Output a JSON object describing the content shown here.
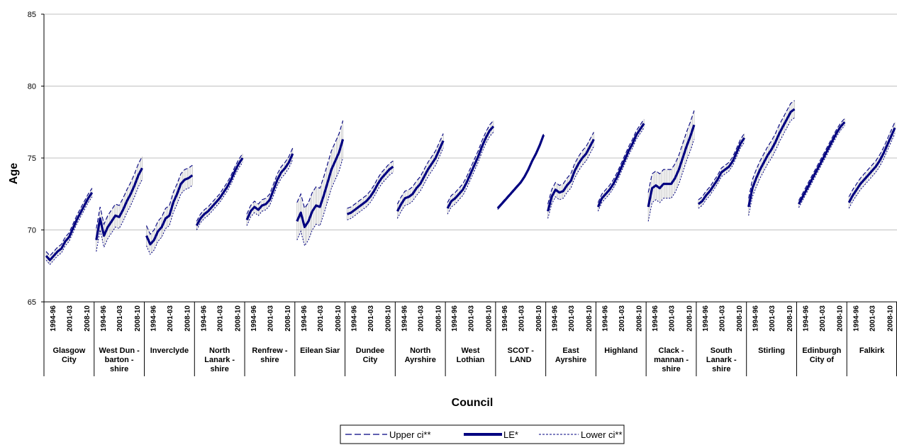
{
  "chart_data": {
    "type": "line",
    "title": "",
    "xlabel": "Council",
    "ylabel": "Age",
    "ylim": [
      65,
      85
    ],
    "yticks": [
      65,
      70,
      75,
      80,
      85
    ],
    "grid": true,
    "legend_position": "bottom",
    "colors": {
      "line": "#000080",
      "band_hatch": "#b0b0b0",
      "grid": "#c0c0c0",
      "axis": "#000000"
    },
    "period_labels": [
      "1994-96",
      "2001-03",
      "2008-10"
    ],
    "series_names": {
      "upper": "Upper ci**",
      "le": "LE*",
      "lower": "Lower ci**"
    },
    "councils": [
      {
        "name": "Glasgow City",
        "label_lines": [
          "Glasgow",
          "City"
        ],
        "le": [
          68.2,
          67.9,
          68.2,
          68.5,
          68.7,
          69.2,
          69.5,
          70.1,
          70.7,
          71.2,
          71.7,
          72.2,
          72.6
        ],
        "ci": [
          0.3,
          0.3,
          0.3,
          0.3,
          0.3,
          0.3,
          0.3,
          0.3,
          0.3,
          0.3,
          0.3,
          0.3,
          0.3
        ]
      },
      {
        "name": "West Dunbartonshire",
        "label_lines": [
          "West Dun -",
          "barton -",
          "shire"
        ],
        "le": [
          69.3,
          70.8,
          69.6,
          70.2,
          70.6,
          71.0,
          70.9,
          71.4,
          72.0,
          72.5,
          73.1,
          73.8,
          74.3
        ],
        "ci": [
          0.8,
          0.8,
          0.8,
          0.8,
          0.8,
          0.8,
          0.8,
          0.8,
          0.8,
          0.8,
          0.8,
          0.8,
          0.8
        ]
      },
      {
        "name": "Inverclyde",
        "label_lines": [
          "Inverclyde"
        ],
        "le": [
          69.6,
          69.0,
          69.3,
          69.9,
          70.2,
          70.8,
          71.0,
          71.9,
          72.5,
          73.2,
          73.5,
          73.6,
          73.8
        ],
        "ci": [
          0.7,
          0.7,
          0.7,
          0.7,
          0.7,
          0.7,
          0.7,
          0.7,
          0.7,
          0.7,
          0.7,
          0.7,
          0.7
        ]
      },
      {
        "name": "North Lanarkshire",
        "label_lines": [
          "North",
          "Lanark -",
          "shire"
        ],
        "le": [
          70.3,
          70.8,
          71.1,
          71.3,
          71.6,
          71.9,
          72.2,
          72.6,
          73.0,
          73.5,
          74.1,
          74.6,
          75.0
        ],
        "ci": [
          0.3,
          0.3,
          0.3,
          0.3,
          0.3,
          0.3,
          0.3,
          0.3,
          0.3,
          0.3,
          0.3,
          0.3,
          0.3
        ]
      },
      {
        "name": "Renfrewshire",
        "label_lines": [
          "Renfrew -",
          "shire"
        ],
        "le": [
          70.7,
          71.3,
          71.6,
          71.4,
          71.7,
          71.8,
          72.1,
          72.8,
          73.5,
          74.0,
          74.3,
          74.7,
          75.3
        ],
        "ci": [
          0.4,
          0.4,
          0.4,
          0.4,
          0.4,
          0.4,
          0.4,
          0.4,
          0.4,
          0.4,
          0.4,
          0.4,
          0.4
        ]
      },
      {
        "name": "Eilean Siar",
        "label_lines": [
          "Eilean Siar"
        ],
        "le": [
          70.6,
          71.2,
          70.2,
          70.6,
          71.3,
          71.7,
          71.6,
          72.4,
          73.3,
          74.2,
          74.8,
          75.4,
          76.3
        ],
        "ci": [
          1.3,
          1.3,
          1.3,
          1.3,
          1.3,
          1.3,
          1.3,
          1.3,
          1.3,
          1.3,
          1.3,
          1.3,
          1.3
        ]
      },
      {
        "name": "Dundee City",
        "label_lines": [
          "Dundee",
          "City"
        ],
        "le": [
          71.1,
          71.2,
          71.4,
          71.6,
          71.8,
          72.0,
          72.3,
          72.7,
          73.2,
          73.6,
          73.9,
          74.2,
          74.4
        ],
        "ci": [
          0.4,
          0.4,
          0.4,
          0.4,
          0.4,
          0.4,
          0.4,
          0.4,
          0.4,
          0.4,
          0.4,
          0.4,
          0.4
        ]
      },
      {
        "name": "North Ayrshire",
        "label_lines": [
          "North",
          "Ayrshire"
        ],
        "le": [
          71.3,
          71.8,
          72.2,
          72.3,
          72.5,
          72.9,
          73.2,
          73.7,
          74.2,
          74.6,
          75.0,
          75.6,
          76.2
        ],
        "ci": [
          0.5,
          0.5,
          0.5,
          0.5,
          0.5,
          0.5,
          0.5,
          0.5,
          0.5,
          0.5,
          0.5,
          0.5,
          0.5
        ]
      },
      {
        "name": "West Lothian",
        "label_lines": [
          "West",
          "Lothian"
        ],
        "le": [
          71.5,
          72.0,
          72.2,
          72.5,
          72.8,
          73.3,
          73.9,
          74.5,
          75.1,
          75.8,
          76.4,
          76.9,
          77.2
        ],
        "ci": [
          0.4,
          0.4,
          0.4,
          0.4,
          0.4,
          0.4,
          0.4,
          0.4,
          0.4,
          0.4,
          0.4,
          0.4,
          0.4
        ]
      },
      {
        "name": "Scotland",
        "label_lines": [
          "SCOT -",
          "LAND"
        ],
        "le": [
          71.5,
          71.8,
          72.1,
          72.4,
          72.7,
          73.0,
          73.3,
          73.7,
          74.2,
          74.8,
          75.3,
          75.9,
          76.6
        ],
        "ci": [
          0.08,
          0.08,
          0.08,
          0.08,
          0.08,
          0.08,
          0.08,
          0.08,
          0.08,
          0.08,
          0.08,
          0.08,
          0.08
        ]
      },
      {
        "name": "East Ayrshire",
        "label_lines": [
          "East",
          "Ayrshire"
        ],
        "le": [
          71.3,
          72.3,
          72.8,
          72.6,
          72.7,
          73.1,
          73.4,
          74.1,
          74.6,
          75.0,
          75.3,
          75.8,
          76.3
        ],
        "ci": [
          0.5,
          0.5,
          0.5,
          0.5,
          0.5,
          0.5,
          0.5,
          0.5,
          0.5,
          0.5,
          0.5,
          0.5,
          0.5
        ]
      },
      {
        "name": "Highland",
        "label_lines": [
          "Highland"
        ],
        "le": [
          71.6,
          72.2,
          72.5,
          72.8,
          73.2,
          73.7,
          74.3,
          74.9,
          75.5,
          76.0,
          76.6,
          77.0,
          77.4
        ],
        "ci": [
          0.3,
          0.3,
          0.3,
          0.3,
          0.3,
          0.3,
          0.3,
          0.3,
          0.3,
          0.3,
          0.3,
          0.3,
          0.3
        ]
      },
      {
        "name": "Clackmannanshire",
        "label_lines": [
          "Clack -",
          "mannan -",
          "shire"
        ],
        "le": [
          71.6,
          72.9,
          73.1,
          72.9,
          73.2,
          73.2,
          73.2,
          73.6,
          74.2,
          75.0,
          75.8,
          76.5,
          77.3
        ],
        "ci": [
          1.0,
          1.0,
          1.0,
          1.0,
          1.0,
          1.0,
          1.0,
          1.0,
          1.0,
          1.0,
          1.0,
          1.0,
          1.0
        ]
      },
      {
        "name": "South Lanarkshire",
        "label_lines": [
          "South",
          "Lanark -",
          "shire"
        ],
        "le": [
          71.8,
          72.0,
          72.4,
          72.7,
          73.1,
          73.5,
          74.0,
          74.2,
          74.4,
          74.8,
          75.4,
          76.0,
          76.4
        ],
        "ci": [
          0.3,
          0.3,
          0.3,
          0.3,
          0.3,
          0.3,
          0.3,
          0.3,
          0.3,
          0.3,
          0.3,
          0.3,
          0.3
        ]
      },
      {
        "name": "Stirling",
        "label_lines": [
          "Stirling"
        ],
        "le": [
          71.6,
          72.9,
          73.6,
          74.2,
          74.7,
          75.2,
          75.6,
          76.1,
          76.7,
          77.2,
          77.7,
          78.2,
          78.4
        ],
        "ci": [
          0.6,
          0.6,
          0.6,
          0.6,
          0.6,
          0.6,
          0.6,
          0.6,
          0.6,
          0.6,
          0.6,
          0.6,
          0.6
        ]
      },
      {
        "name": "Edinburgh City of",
        "label_lines": [
          "Edinburgh",
          "City of"
        ],
        "le": [
          71.8,
          72.3,
          72.8,
          73.3,
          73.8,
          74.3,
          74.8,
          75.3,
          75.8,
          76.3,
          76.8,
          77.2,
          77.5
        ],
        "ci": [
          0.25,
          0.25,
          0.25,
          0.25,
          0.25,
          0.25,
          0.25,
          0.25,
          0.25,
          0.25,
          0.25,
          0.25,
          0.25
        ]
      },
      {
        "name": "Falkirk",
        "label_lines": [
          "Falkirk"
        ],
        "le": [
          71.9,
          72.4,
          72.8,
          73.2,
          73.5,
          73.8,
          74.1,
          74.4,
          74.8,
          75.3,
          75.9,
          76.5,
          77.1
        ],
        "ci": [
          0.4,
          0.4,
          0.4,
          0.4,
          0.4,
          0.4,
          0.4,
          0.4,
          0.4,
          0.4,
          0.4,
          0.4,
          0.4
        ]
      }
    ]
  }
}
